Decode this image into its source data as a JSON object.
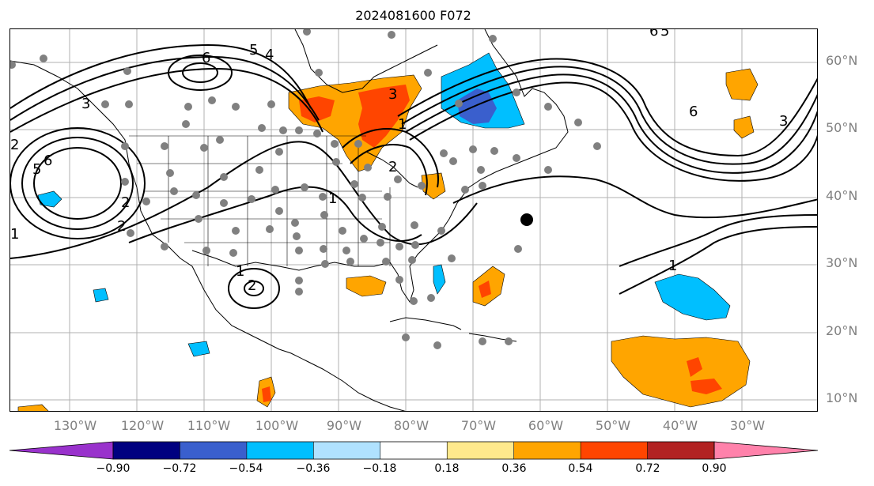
{
  "title": "2024081600 F072",
  "lat_labels": [
    "60°N",
    "50°N",
    "40°N",
    "30°N",
    "20°N",
    "10°N"
  ],
  "lon_labels": [
    "130°W",
    "120°W",
    "110°W",
    "100°W",
    "90°W",
    "80°W",
    "70°W",
    "60°W",
    "50°W",
    "40°W",
    "30°W"
  ],
  "contour_labels": [
    "6",
    "5",
    "4",
    "3",
    "2",
    "1",
    "5",
    "6",
    "2",
    "1",
    "2",
    "1",
    "2",
    "3",
    "6",
    "3",
    "1",
    "2",
    "1",
    "6",
    "5"
  ],
  "colorbar": {
    "colors": [
      "#9932cc",
      "#000080",
      "#3a5fcd",
      "#00bfff",
      "#b0e2ff",
      "#ffffff",
      "#ffe98c",
      "#ffa500",
      "#ff4500",
      "#b22222",
      "#ff82ab"
    ],
    "ticks": [
      "−0.90",
      "−0.72",
      "−0.54",
      "−0.36",
      "−0.18",
      "0.18",
      "0.36",
      "0.54",
      "0.72",
      "0.90"
    ]
  }
}
